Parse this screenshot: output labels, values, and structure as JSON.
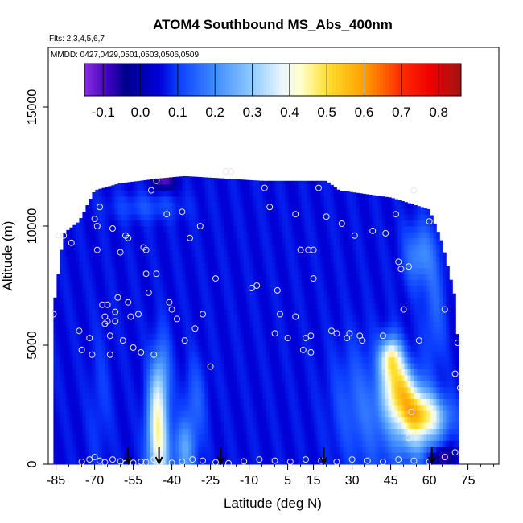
{
  "chart_data": {
    "type": "heatmap",
    "title": "ATOM4 Southbound MS_Abs_400nm",
    "subtitle_flights": "Flts: 2,3,4,5,6,7",
    "subtitle_dates": "MMDD: 0427,0429,0501,0503,0506,0509",
    "xlabel": "Latitude (deg N)",
    "ylabel": "Altitude (m)",
    "xlim": [
      -88,
      87
    ],
    "ylim": [
      0,
      17500
    ],
    "x_ticks": [
      -85,
      -70,
      -55,
      -40,
      -25,
      -10,
      5,
      15,
      30,
      45,
      60,
      75
    ],
    "y_ticks": [
      0,
      5000,
      10000,
      15000
    ],
    "colorbar": {
      "ticks": [
        -0.1,
        0.0,
        0.1,
        0.2,
        0.3,
        0.4,
        0.5,
        0.6,
        0.7,
        0.8
      ],
      "range": [
        -0.15,
        0.86
      ],
      "stops": [
        {
          "v": -0.15,
          "c": "#8a2be2"
        },
        {
          "v": -0.08,
          "c": "#3500b8"
        },
        {
          "v": -0.04,
          "c": "#00008b"
        },
        {
          "v": 0.05,
          "c": "#0000d8"
        },
        {
          "v": 0.1,
          "c": "#0a3cff"
        },
        {
          "v": 0.2,
          "c": "#3f8cff"
        },
        {
          "v": 0.3,
          "c": "#90caff"
        },
        {
          "v": 0.38,
          "c": "#eaf6ff"
        },
        {
          "v": 0.43,
          "c": "#ffffcc"
        },
        {
          "v": 0.5,
          "c": "#ffe030"
        },
        {
          "v": 0.6,
          "c": "#ffa000"
        },
        {
          "v": 0.7,
          "c": "#ff2a00"
        },
        {
          "v": 0.78,
          "c": "#ee0000"
        },
        {
          "v": 0.86,
          "c": "#a01414"
        }
      ]
    },
    "field": {
      "background_value": 0.06,
      "top_altitude_profile": [
        {
          "lat": -86,
          "alt": 6500
        },
        {
          "lat": -82,
          "alt": 9700
        },
        {
          "lat": -76,
          "alt": 10200
        },
        {
          "lat": -70,
          "alt": 11500
        },
        {
          "lat": -60,
          "alt": 11800
        },
        {
          "lat": -45,
          "alt": 12000
        },
        {
          "lat": -35,
          "alt": 12100
        },
        {
          "lat": -5,
          "alt": 11900
        },
        {
          "lat": 20,
          "alt": 11900
        },
        {
          "lat": 25,
          "alt": 11500
        },
        {
          "lat": 45,
          "alt": 11200
        },
        {
          "lat": 60,
          "alt": 10700
        },
        {
          "lat": 65,
          "alt": 9300
        },
        {
          "lat": 70,
          "alt": 7000
        },
        {
          "lat": 72,
          "alt": 3500
        }
      ],
      "features": [
        {
          "lat": -45,
          "alt": 500,
          "sx": 3,
          "sy": 1500,
          "v": 0.32
        },
        {
          "lat": -46,
          "alt": 2200,
          "sx": 2.5,
          "sy": 1400,
          "v": 0.25
        },
        {
          "lat": -44,
          "alt": 3800,
          "sx": 2.5,
          "sy": 1200,
          "v": 0.18
        },
        {
          "lat": -35,
          "alt": 600,
          "sx": 3,
          "sy": 900,
          "v": 0.22
        },
        {
          "lat": -31,
          "alt": 2600,
          "sx": 3,
          "sy": 1200,
          "v": 0.14
        },
        {
          "lat": -68,
          "alt": 2500,
          "sx": 3,
          "sy": 2000,
          "v": 0.1
        },
        {
          "lat": 45,
          "alt": 4500,
          "sx": 3,
          "sy": 600,
          "v": 0.4
        },
        {
          "lat": 48,
          "alt": 3400,
          "sx": 4,
          "sy": 700,
          "v": 0.35
        },
        {
          "lat": 52,
          "alt": 2600,
          "sx": 6,
          "sy": 700,
          "v": 0.3
        },
        {
          "lat": 58,
          "alt": 2000,
          "sx": 7,
          "sy": 600,
          "v": 0.32
        },
        {
          "lat": 55,
          "alt": 1200,
          "sx": 6,
          "sy": 800,
          "v": 0.22
        },
        {
          "lat": 40,
          "alt": 2000,
          "sx": 10,
          "sy": 1800,
          "v": 0.14
        },
        {
          "lat": 30,
          "alt": 3000,
          "sx": 6,
          "sy": 1600,
          "v": 0.1
        },
        {
          "lat": 56,
          "alt": 8800,
          "sx": 4,
          "sy": 900,
          "v": 0.2
        },
        {
          "lat": 62,
          "alt": 6500,
          "sx": 3,
          "sy": 1800,
          "v": 0.14
        },
        {
          "lat": -50,
          "alt": 10800,
          "sx": 10,
          "sy": 400,
          "v": 0.12
        },
        {
          "lat": -43,
          "alt": 11900,
          "sx": 3,
          "sy": 250,
          "v": -0.12
        },
        {
          "lat": 65,
          "alt": 300,
          "sx": 3,
          "sy": 300,
          "v": -0.12
        }
      ]
    },
    "sample_points": [
      [
        -86,
        6300
      ],
      [
        -84,
        9600
      ],
      [
        -82,
        9600
      ],
      [
        -79,
        9300
      ],
      [
        -76,
        5600
      ],
      [
        -75,
        4800
      ],
      [
        -72,
        5300
      ],
      [
        -71,
        4600
      ],
      [
        -70,
        10300
      ],
      [
        -69,
        10000
      ],
      [
        -69,
        9000
      ],
      [
        -68,
        10800
      ],
      [
        -67,
        6700
      ],
      [
        -66,
        6200
      ],
      [
        -66,
        5900
      ],
      [
        -65,
        6000
      ],
      [
        -65,
        6700
      ],
      [
        -64,
        5400
      ],
      [
        -64,
        4600
      ],
      [
        -63,
        9900
      ],
      [
        -62,
        6400
      ],
      [
        -62,
        6000
      ],
      [
        -61,
        7000
      ],
      [
        -60,
        8900
      ],
      [
        -59,
        5200
      ],
      [
        -58,
        9600
      ],
      [
        -57,
        9500
      ],
      [
        -57,
        6800
      ],
      [
        -56,
        6200
      ],
      [
        -55,
        4900
      ],
      [
        -53,
        6300
      ],
      [
        -52,
        4700
      ],
      [
        -51,
        9100
      ],
      [
        -50,
        9000
      ],
      [
        -50,
        8000
      ],
      [
        -49,
        7200
      ],
      [
        -48,
        11500
      ],
      [
        -47,
        4600
      ],
      [
        -46,
        11900
      ],
      [
        -46,
        8000
      ],
      [
        -42,
        10500
      ],
      [
        -41,
        6800
      ],
      [
        -40,
        6500
      ],
      [
        -38,
        6100
      ],
      [
        -36,
        10600
      ],
      [
        -35,
        5200
      ],
      [
        -33,
        9500
      ],
      [
        -31,
        5700
      ],
      [
        -29,
        10000
      ],
      [
        -28,
        6300
      ],
      [
        -25,
        4100
      ],
      [
        -23,
        7800
      ],
      [
        -19,
        12300
      ],
      [
        -17,
        12300
      ],
      [
        -9,
        7400
      ],
      [
        -7,
        7500
      ],
      [
        -4,
        11600
      ],
      [
        -2,
        10800
      ],
      [
        0,
        5500
      ],
      [
        1,
        7300
      ],
      [
        2,
        6300
      ],
      [
        5,
        5300
      ],
      [
        8,
        10500
      ],
      [
        8,
        6200
      ],
      [
        10,
        9000
      ],
      [
        11,
        4800
      ],
      [
        12,
        5300
      ],
      [
        13,
        9000
      ],
      [
        14,
        4700
      ],
      [
        14,
        5400
      ],
      [
        15,
        9000
      ],
      [
        15,
        7800
      ],
      [
        17,
        11600
      ],
      [
        20,
        10400
      ],
      [
        22,
        5600
      ],
      [
        24,
        5500
      ],
      [
        26,
        10100
      ],
      [
        28,
        5300
      ],
      [
        29,
        5500
      ],
      [
        31,
        9600
      ],
      [
        33,
        5400
      ],
      [
        34,
        5200
      ],
      [
        38,
        9800
      ],
      [
        42,
        5400
      ],
      [
        43,
        9700
      ],
      [
        47,
        10500
      ],
      [
        48,
        8500
      ],
      [
        49,
        8200
      ],
      [
        50,
        6500
      ],
      [
        52,
        8300
      ],
      [
        52,
        1100
      ],
      [
        53,
        2200
      ],
      [
        54,
        11500
      ],
      [
        56,
        5200
      ],
      [
        60,
        10200
      ],
      [
        66,
        6500
      ],
      [
        70,
        3800
      ],
      [
        71,
        5100
      ],
      [
        72,
        3200
      ],
      [
        70,
        500
      ],
      [
        -75,
        100
      ],
      [
        -72,
        200
      ],
      [
        -70,
        300
      ],
      [
        -68,
        150
      ],
      [
        -66,
        80
      ],
      [
        -63,
        200
      ],
      [
        -60,
        120
      ],
      [
        -58,
        40
      ],
      [
        -55,
        60
      ],
      [
        -52,
        100
      ],
      [
        -50,
        80
      ],
      [
        -47,
        200
      ],
      [
        -44,
        120
      ],
      [
        -40,
        60
      ],
      [
        -36,
        100
      ],
      [
        -32,
        200
      ],
      [
        -28,
        150
      ],
      [
        -23,
        80
      ],
      [
        -18,
        40
      ],
      [
        -12,
        120
      ],
      [
        -6,
        200
      ],
      [
        0,
        150
      ],
      [
        6,
        100
      ],
      [
        12,
        200
      ],
      [
        18,
        150
      ],
      [
        24,
        100
      ],
      [
        30,
        200
      ],
      [
        36,
        150
      ],
      [
        42,
        100
      ],
      [
        48,
        200
      ],
      [
        54,
        150
      ],
      [
        60,
        100
      ],
      [
        66,
        300
      ]
    ],
    "flight_markers_lat": [
      -57,
      -45,
      -21,
      19,
      61
    ]
  }
}
